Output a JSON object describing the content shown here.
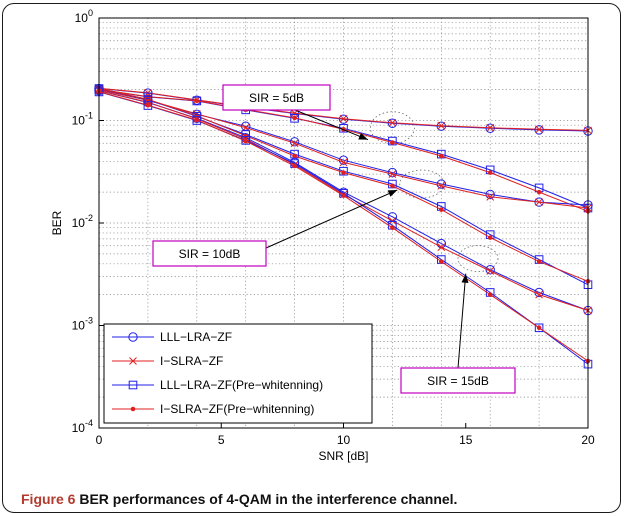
{
  "caption": {
    "figure_label": "Figure 6",
    "text": "BER performances of 4-QAM in the interference channel."
  },
  "chart_data": {
    "type": "line",
    "title": "",
    "xlabel": "SNR [dB]",
    "ylabel": "BER",
    "xlim": [
      0,
      20
    ],
    "ylim_log10": [
      -4,
      0
    ],
    "y_scale": "log",
    "grid": true,
    "x_ticks": [
      0,
      5,
      10,
      15,
      20
    ],
    "y_ticks": [
      {
        "base": "10",
        "exp": "0"
      },
      {
        "base": "10",
        "exp": "-1"
      },
      {
        "base": "10",
        "exp": "-2"
      },
      {
        "base": "10",
        "exp": "-3"
      },
      {
        "base": "10",
        "exp": "-4"
      }
    ],
    "legend_position": "bottom-left",
    "x": [
      0,
      2,
      4,
      6,
      8,
      10,
      12,
      14,
      16,
      18,
      20
    ],
    "series": [
      {
        "name": "LLL−LRA−ZF",
        "color": "#2020e8",
        "marker": "circle",
        "group": "SIR = 5dB",
        "values": [
          0.205,
          0.185,
          0.158,
          0.135,
          0.117,
          0.103,
          0.094,
          0.088,
          0.084,
          0.081,
          0.079
        ]
      },
      {
        "name": "I−SLRA−ZF",
        "color": "#e02020",
        "marker": "x",
        "group": "SIR = 5dB",
        "values": [
          0.206,
          0.186,
          0.159,
          0.136,
          0.118,
          0.104,
          0.095,
          0.089,
          0.085,
          0.082,
          0.08
        ]
      },
      {
        "name": "LLL−LRA−ZF(Pre−whitenning)",
        "color": "#2020e8",
        "marker": "square",
        "group": "SIR = 5dB",
        "values": [
          0.2,
          0.17,
          0.155,
          0.127,
          0.105,
          0.084,
          0.063,
          0.047,
          0.033,
          0.022,
          0.014
        ]
      },
      {
        "name": "I−SLRA−ZF(Pre−whitenning)",
        "color": "#e02020",
        "marker": "dot",
        "group": "SIR = 5dB",
        "values": [
          0.201,
          0.171,
          0.156,
          0.128,
          0.106,
          0.082,
          0.061,
          0.045,
          0.031,
          0.02,
          0.013
        ]
      },
      {
        "name": "LLL−LRA−ZF",
        "color": "#2020e8",
        "marker": "circle",
        "group": "SIR = 10dB",
        "values": [
          0.2,
          0.157,
          0.115,
          0.088,
          0.062,
          0.041,
          0.031,
          0.024,
          0.019,
          0.016,
          0.015
        ]
      },
      {
        "name": "I−SLRA−ZF",
        "color": "#e02020",
        "marker": "x",
        "group": "SIR = 10dB",
        "values": [
          0.201,
          0.158,
          0.116,
          0.085,
          0.06,
          0.039,
          0.03,
          0.023,
          0.018,
          0.016,
          0.014
        ]
      },
      {
        "name": "LLL−LRA−ZF(Pre−whitenning)",
        "color": "#2020e8",
        "marker": "square",
        "group": "SIR = 10dB",
        "values": [
          0.205,
          0.16,
          0.11,
          0.073,
          0.047,
          0.032,
          0.024,
          0.0145,
          0.0077,
          0.0044,
          0.0025
        ]
      },
      {
        "name": "I−SLRA−ZF(Pre−whitenning)",
        "color": "#e02020",
        "marker": "dot",
        "group": "SIR = 10dB",
        "values": [
          0.206,
          0.161,
          0.111,
          0.071,
          0.045,
          0.031,
          0.023,
          0.0135,
          0.0072,
          0.0042,
          0.0027
        ]
      },
      {
        "name": "LLL−LRA−ZF",
        "color": "#2020e8",
        "marker": "circle",
        "group": "SIR = 15dB",
        "values": [
          0.195,
          0.15,
          0.105,
          0.068,
          0.039,
          0.02,
          0.0115,
          0.0063,
          0.0035,
          0.0021,
          0.0014
        ]
      },
      {
        "name": "I−SLRA−ZF",
        "color": "#e02020",
        "marker": "x",
        "group": "SIR = 15dB",
        "values": [
          0.196,
          0.151,
          0.104,
          0.066,
          0.037,
          0.019,
          0.0105,
          0.0058,
          0.0034,
          0.002,
          0.0014
        ]
      },
      {
        "name": "LLL−LRA−ZF(Pre−whitenning)",
        "color": "#2020e8",
        "marker": "square",
        "group": "SIR = 15dB",
        "values": [
          0.19,
          0.14,
          0.1,
          0.064,
          0.038,
          0.0195,
          0.0095,
          0.0044,
          0.0021,
          0.00095,
          0.00042
        ]
      },
      {
        "name": "I−SLRA−ZF(Pre−whitenning)",
        "color": "#e02020",
        "marker": "dot",
        "group": "SIR = 15dB",
        "values": [
          0.191,
          0.141,
          0.101,
          0.063,
          0.036,
          0.0185,
          0.009,
          0.0042,
          0.002,
          0.00095,
          0.00045
        ]
      }
    ],
    "annotations": [
      {
        "text": "SIR = 5dB",
        "box_color": "#c000c0",
        "arrow_to": [
          11.0,
          0.065
        ]
      },
      {
        "text": "SIR = 10dB",
        "box_color": "#c000c0",
        "arrow_to": [
          12.2,
          0.021
        ]
      },
      {
        "text": "SIR = 15dB",
        "box_color": "#c000c0",
        "arrow_to": [
          15.0,
          0.0032
        ]
      }
    ]
  }
}
